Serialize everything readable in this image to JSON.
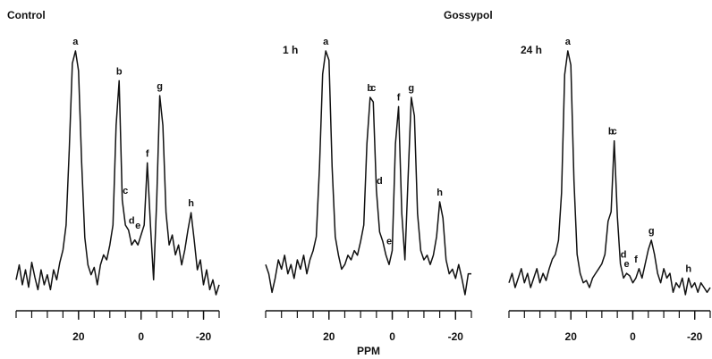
{
  "group_title": "Gossypol",
  "xlabel": "PPM",
  "chart_data": [
    {
      "type": "line",
      "title": "Control",
      "color": "#111111",
      "xlim": [
        40,
        -25
      ],
      "xticks": [
        20,
        0,
        -20
      ],
      "xminorticks": [
        40,
        35,
        30,
        25,
        20,
        15,
        10,
        5,
        0,
        -5,
        -10,
        -15,
        -20,
        -25
      ],
      "x": [
        40,
        39,
        38,
        37,
        36,
        35,
        34,
        33,
        32,
        31,
        30,
        29,
        28,
        27,
        26,
        25,
        24,
        23,
        22,
        21,
        20,
        19,
        18,
        17,
        16,
        15,
        14,
        13,
        12,
        11,
        10,
        9,
        8,
        7,
        6,
        5,
        4,
        3,
        2,
        1,
        0,
        -1,
        -2,
        -3,
        -4,
        -5,
        -6,
        -7,
        -8,
        -9,
        -10,
        -11,
        -12,
        -13,
        -14,
        -15,
        -16,
        -17,
        -18,
        -19,
        -20,
        -21,
        -22,
        -23,
        -24,
        -25
      ],
      "values": [
        8,
        14,
        6,
        12,
        5,
        15,
        9,
        4,
        12,
        6,
        10,
        4,
        12,
        8,
        15,
        20,
        30,
        60,
        95,
        100,
        92,
        55,
        25,
        14,
        10,
        13,
        6,
        14,
        18,
        16,
        22,
        30,
        70,
        88,
        40,
        30,
        28,
        22,
        24,
        22,
        26,
        30,
        55,
        30,
        8,
        40,
        82,
        70,
        35,
        22,
        26,
        18,
        22,
        14,
        20,
        28,
        35,
        24,
        12,
        16,
        6,
        12,
        4,
        8,
        2,
        6
      ],
      "annotations": [
        {
          "text": "a",
          "x": 21
        },
        {
          "text": "b",
          "x": 7
        },
        {
          "text": "c",
          "x": 5
        },
        {
          "text": "d",
          "x": 3
        },
        {
          "text": "e",
          "x": 1
        },
        {
          "text": "f",
          "x": -2
        },
        {
          "text": "g",
          "x": -6
        },
        {
          "text": "h",
          "x": -16
        }
      ]
    },
    {
      "type": "line",
      "title": "1 h",
      "color": "#111111",
      "xlim": [
        40,
        -25
      ],
      "xticks": [
        20,
        0,
        -20
      ],
      "xminorticks": [
        40,
        35,
        30,
        25,
        20,
        15,
        10,
        5,
        0,
        -5,
        -10,
        -15,
        -20,
        -25
      ],
      "x": [
        40,
        39,
        38,
        37,
        36,
        35,
        34,
        33,
        32,
        31,
        30,
        29,
        28,
        27,
        26,
        25,
        24,
        23,
        22,
        21,
        20,
        19,
        18,
        17,
        16,
        15,
        14,
        13,
        12,
        11,
        10,
        9,
        8,
        7,
        6,
        5,
        4,
        3,
        2,
        1,
        0,
        -1,
        -2,
        -3,
        -4,
        -5,
        -6,
        -7,
        -8,
        -9,
        -10,
        -11,
        -12,
        -13,
        -14,
        -15,
        -16,
        -17,
        -18,
        -19,
        -20,
        -21,
        -22,
        -23,
        -24,
        -25
      ],
      "values": [
        8,
        4,
        -4,
        2,
        10,
        6,
        12,
        4,
        8,
        2,
        10,
        6,
        12,
        4,
        10,
        14,
        20,
        50,
        90,
        100,
        96,
        50,
        20,
        12,
        6,
        8,
        12,
        10,
        14,
        12,
        18,
        25,
        60,
        80,
        78,
        40,
        22,
        18,
        12,
        8,
        14,
        60,
        76,
        30,
        10,
        45,
        80,
        72,
        30,
        14,
        10,
        12,
        8,
        12,
        20,
        35,
        28,
        10,
        4,
        6,
        2,
        8,
        2,
        -5,
        4,
        4
      ],
      "annotations": [
        {
          "text": "a",
          "x": 21
        },
        {
          "text": "b",
          "x": 7
        },
        {
          "text": "c",
          "x": 6
        },
        {
          "text": "d",
          "x": 4
        },
        {
          "text": "e",
          "x": 1
        },
        {
          "text": "f",
          "x": -2
        },
        {
          "text": "g",
          "x": -6
        },
        {
          "text": "h",
          "x": -15
        }
      ]
    },
    {
      "type": "line",
      "title": "24 h",
      "color": "#111111",
      "xlim": [
        40,
        -25
      ],
      "xticks": [
        20,
        0,
        -20
      ],
      "xminorticks": [
        40,
        35,
        30,
        25,
        20,
        15,
        10,
        5,
        0,
        -5,
        -10,
        -15,
        -20,
        -25
      ],
      "x": [
        40,
        39,
        38,
        37,
        36,
        35,
        34,
        33,
        32,
        31,
        30,
        29,
        28,
        27,
        26,
        25,
        24,
        23,
        22,
        21,
        20,
        19,
        18,
        17,
        16,
        15,
        14,
        13,
        12,
        11,
        10,
        9,
        8,
        7,
        6,
        5,
        4,
        3,
        2,
        1,
        0,
        -1,
        -2,
        -3,
        -4,
        -5,
        -6,
        -7,
        -8,
        -9,
        -10,
        -11,
        -12,
        -13,
        -14,
        -15,
        -16,
        -17,
        -18,
        -19,
        -20,
        -21,
        -22,
        -23,
        -24,
        -25
      ],
      "values": [
        2,
        6,
        0,
        4,
        8,
        2,
        6,
        0,
        4,
        8,
        2,
        6,
        3,
        8,
        12,
        14,
        20,
        40,
        90,
        100,
        94,
        45,
        14,
        6,
        2,
        3,
        0,
        4,
        6,
        8,
        10,
        14,
        28,
        32,
        62,
        30,
        10,
        4,
        6,
        5,
        2,
        4,
        8,
        4,
        10,
        16,
        20,
        14,
        6,
        2,
        8,
        4,
        6,
        -2,
        2,
        0,
        4,
        -3,
        4,
        0,
        2,
        -2,
        2,
        0,
        -2,
        0
      ],
      "annotations": [
        {
          "text": "a",
          "x": 21
        },
        {
          "text": "b",
          "x": 7
        },
        {
          "text": "c",
          "x": 6
        },
        {
          "text": "d",
          "x": 3
        },
        {
          "text": "e",
          "x": 2
        },
        {
          "text": "f",
          "x": -1
        },
        {
          "text": "g",
          "x": -6
        },
        {
          "text": "h",
          "x": -18
        }
      ]
    }
  ]
}
